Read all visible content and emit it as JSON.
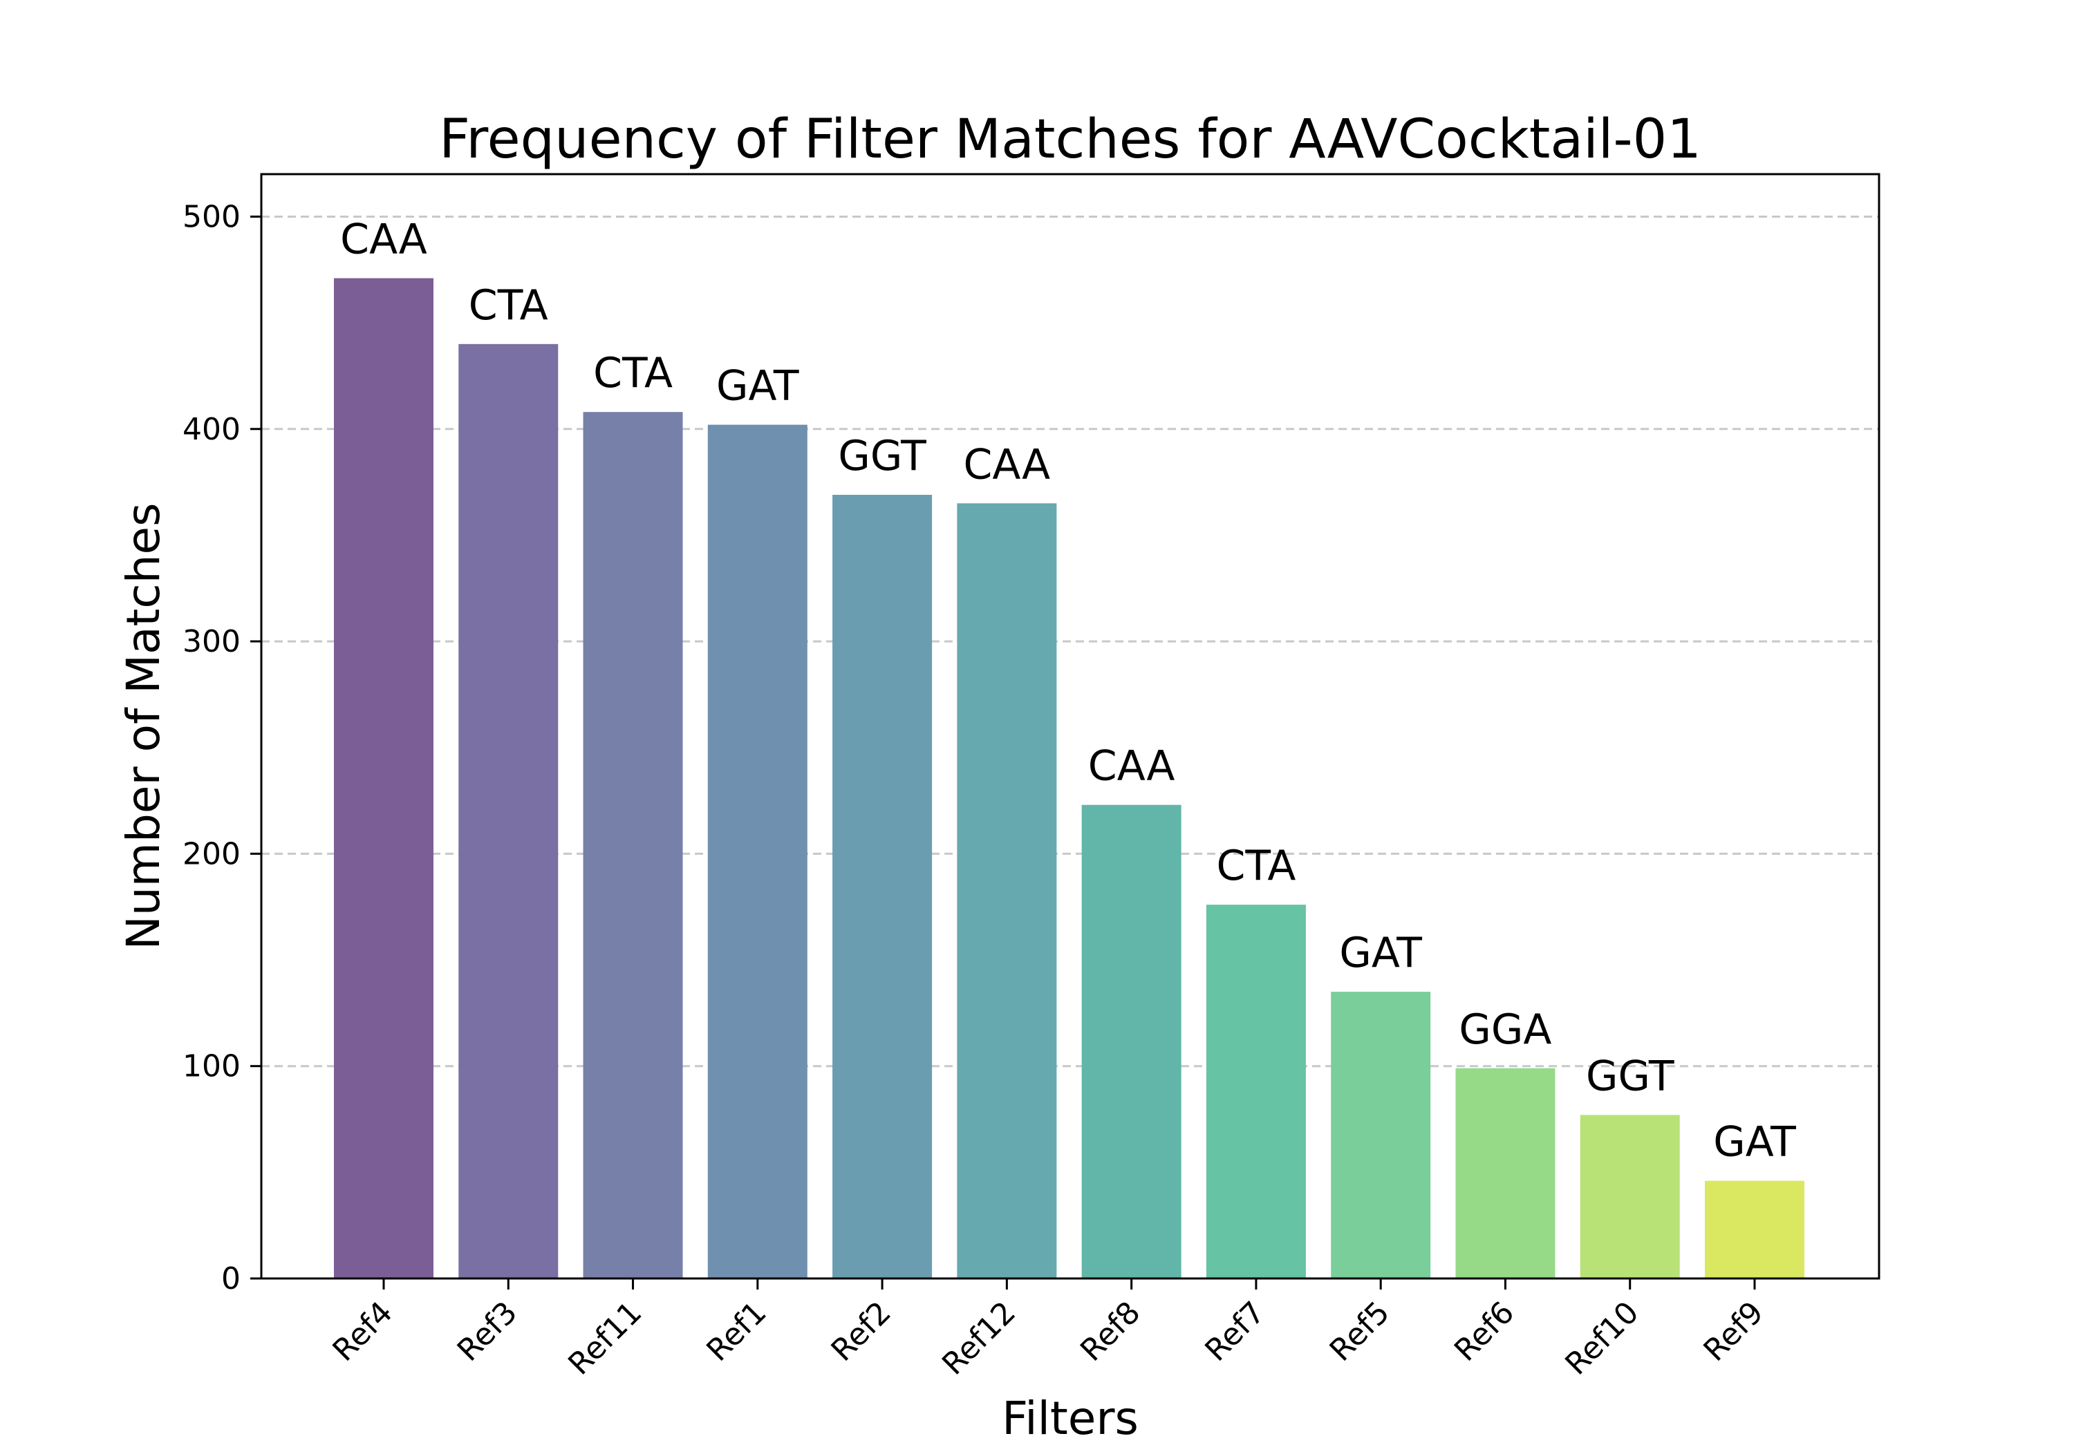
{
  "chart_data": {
    "type": "bar",
    "title": "Frequency of Filter Matches for AAVCocktail-01",
    "xlabel": "Filters",
    "ylabel": "Number of Matches",
    "categories": [
      "Ref4",
      "Ref3",
      "Ref11",
      "Ref1",
      "Ref2",
      "Ref12",
      "Ref8",
      "Ref7",
      "Ref5",
      "Ref6",
      "Ref10",
      "Ref9"
    ],
    "values": [
      471,
      440,
      408,
      402,
      369,
      365,
      223,
      176,
      135,
      99,
      77,
      46
    ],
    "bar_labels": [
      "CAA",
      "CTA",
      "CTA",
      "GAT",
      "GGT",
      "CAA",
      "CAA",
      "CTA",
      "GAT",
      "GGA",
      "GGT",
      "GAT"
    ],
    "bar_colors": [
      "#7b5e95",
      "#7a70a3",
      "#7780a8",
      "#6f90ae",
      "#6a9db0",
      "#66a9ae",
      "#62b5a9",
      "#66c3a4",
      "#79ce9a",
      "#96da88",
      "#b8e276",
      "#d9e860"
    ],
    "ylim": [
      0,
      520
    ],
    "yticks": [
      0,
      100,
      200,
      300,
      400,
      500
    ],
    "grid": "horizontal-dashed",
    "legend": "none"
  }
}
